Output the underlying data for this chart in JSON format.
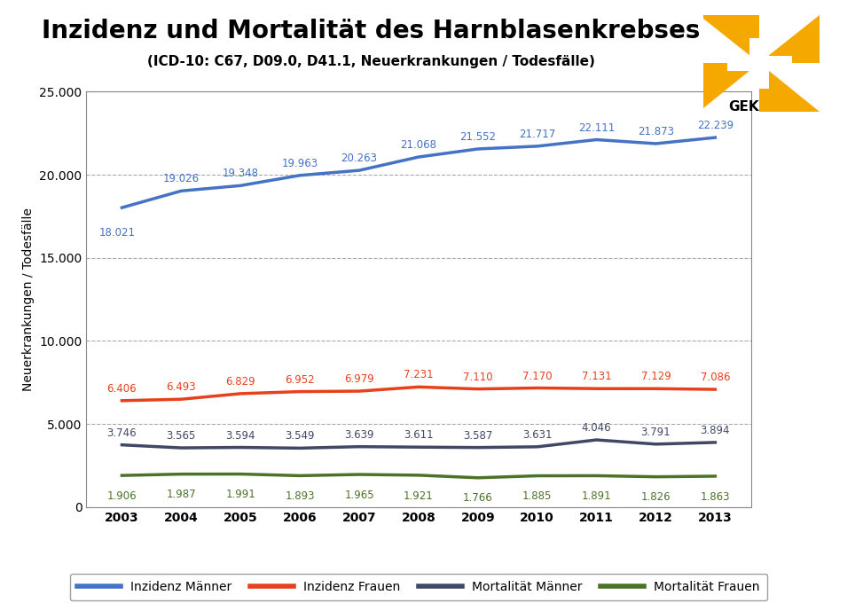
{
  "title": "Inzidenz und Mortalität des Harnblasenkrebses",
  "subtitle": "(ICD-10: C67, D09.0, D41.1, Neuerkrankungen / Todesfälle)",
  "ylabel": "Neuerkrankungen / Todesfälle",
  "years": [
    2003,
    2004,
    2005,
    2006,
    2007,
    2008,
    2009,
    2010,
    2011,
    2012,
    2013
  ],
  "inzidenz_maenner": [
    18021,
    19026,
    19348,
    19963,
    20263,
    21068,
    21552,
    21717,
    22111,
    21873,
    22239
  ],
  "inzidenz_frauen": [
    6406,
    6493,
    6829,
    6952,
    6979,
    7231,
    7110,
    7170,
    7131,
    7129,
    7086
  ],
  "mortalitaet_maenner": [
    3746,
    3565,
    3594,
    3549,
    3639,
    3611,
    3587,
    3631,
    4046,
    3791,
    3894
  ],
  "mortalitaet_frauen": [
    1906,
    1987,
    1991,
    1893,
    1965,
    1921,
    1766,
    1885,
    1891,
    1826,
    1863
  ],
  "color_inzidenz_maenner": "#4472C4",
  "color_inzidenz_frauen": "#E8401C",
  "color_mortalitaet_maenner": "#404866",
  "color_mortalitaet_frauen": "#4A7228",
  "ylim": [
    0,
    25000
  ],
  "yticks": [
    0,
    5000,
    10000,
    15000,
    20000,
    25000
  ],
  "background_color": "#FFFFFF",
  "legend_labels": [
    "Inzidenz Männer",
    "Inzidenz Frauen",
    "Mortalität Männer",
    "Mortalität Frauen"
  ],
  "title_fontsize": 20,
  "subtitle_fontsize": 11,
  "ylabel_fontsize": 10,
  "tick_fontsize": 10,
  "label_fontsize": 8.5,
  "line_width": 2.5,
  "orange": "#F5A800",
  "white": "#FFFFFF",
  "gekid_color": "#E8A000"
}
